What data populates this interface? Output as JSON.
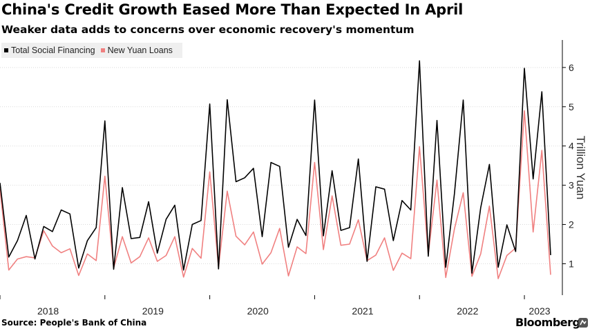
{
  "header": {
    "title": "China's Credit Growth Eased More Than Expected In April",
    "subtitle": "Weaker data adds to concerns over economic recovery's momentum"
  },
  "footer": {
    "source": "Source: People's Bank of China",
    "brand": "Bloomberg"
  },
  "colors": {
    "tsf": "#000000",
    "loans": "#f08080",
    "grid": "#d9d9d9",
    "legend_bg": "#efefef"
  },
  "chart_data": {
    "type": "line",
    "title": "China's Credit Growth Eased More Than Expected In April",
    "subtitle": "Weaker data adds to concerns over economic recovery's momentum",
    "xlabel": "",
    "ylabel": "Trillion Yuan",
    "legend_position": "top-left",
    "grid": true,
    "x_start": "2018-01",
    "x_end": "2023-04",
    "x_labels": [
      "2018",
      "2019",
      "2020",
      "2021",
      "2022",
      "2023"
    ],
    "y_ticks": [
      1,
      2,
      3,
      4,
      5,
      6
    ],
    "ylim": [
      0.2,
      6.7
    ],
    "series": [
      {
        "name": "Total Social Financing",
        "color": "#000000",
        "values": [
          3.06,
          1.17,
          1.59,
          2.23,
          1.12,
          1.95,
          1.82,
          2.37,
          2.27,
          0.89,
          1.59,
          1.92,
          4.64,
          0.86,
          2.94,
          1.64,
          1.67,
          2.58,
          1.27,
          2.13,
          2.49,
          0.84,
          2.0,
          2.1,
          5.07,
          0.87,
          5.18,
          3.09,
          3.19,
          3.43,
          1.69,
          3.58,
          3.48,
          1.42,
          2.13,
          1.72,
          5.17,
          1.71,
          3.37,
          1.85,
          1.92,
          3.67,
          1.06,
          2.96,
          2.9,
          1.59,
          2.61,
          2.37,
          6.17,
          1.19,
          4.65,
          0.91,
          2.79,
          5.17,
          0.76,
          2.43,
          3.53,
          0.91,
          1.99,
          1.31,
          5.98,
          3.16,
          5.38,
          1.22
        ]
      },
      {
        "name": "New Yuan Loans",
        "color": "#f08080",
        "values": [
          2.9,
          0.84,
          1.12,
          1.18,
          1.15,
          1.84,
          1.45,
          1.28,
          1.38,
          0.7,
          1.25,
          1.08,
          3.23,
          0.89,
          1.69,
          1.02,
          1.18,
          1.66,
          1.06,
          1.21,
          1.69,
          0.66,
          1.39,
          1.14,
          3.34,
          0.91,
          2.85,
          1.7,
          1.48,
          1.81,
          0.99,
          1.28,
          1.9,
          0.69,
          1.43,
          1.26,
          3.58,
          1.36,
          2.73,
          1.47,
          1.5,
          2.12,
          1.08,
          1.22,
          1.66,
          0.83,
          1.27,
          1.13,
          3.98,
          1.23,
          3.13,
          0.65,
          1.89,
          2.81,
          0.68,
          1.25,
          2.47,
          0.62,
          1.21,
          1.4,
          4.9,
          1.81,
          3.89,
          0.72
        ]
      }
    ]
  }
}
